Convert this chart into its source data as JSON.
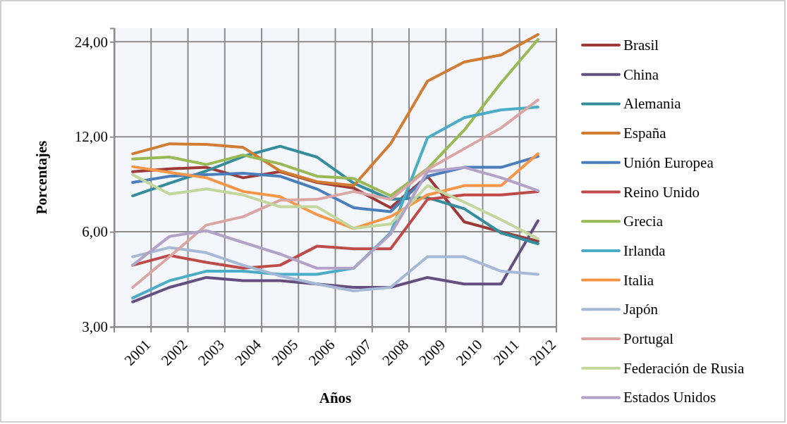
{
  "chart_data": {
    "type": "line",
    "xlabel": "Años",
    "ylabel": "Porcentajes",
    "log": "y",
    "grid": true,
    "legend": "right",
    "line_style": "solid",
    "marker": "none",
    "ylim": [
      3,
      26.5
    ],
    "yticks": [
      {
        "value": 3,
        "label": "3,00"
      },
      {
        "value": 6,
        "label": "6,00"
      },
      {
        "value": 12,
        "label": "12,00"
      },
      {
        "value": 24,
        "label": "24,00"
      }
    ],
    "categories": [
      "2001",
      "2002",
      "2003",
      "2004",
      "2005",
      "2006",
      "2007",
      "2008",
      "2009",
      "2010",
      "2011",
      "2012"
    ],
    "series": [
      {
        "name": "Brasil",
        "color": "#9c3a38",
        "values": [
          9.3,
          9.5,
          9.6,
          8.9,
          9.3,
          8.6,
          8.25,
          7.15,
          9.0,
          6.45,
          6.0,
          5.6
        ]
      },
      {
        "name": "China",
        "color": "#654f80",
        "values": [
          3.6,
          4.0,
          4.3,
          4.2,
          4.2,
          4.1,
          4.0,
          4.0,
          4.3,
          4.1,
          4.1,
          6.5
        ]
      },
      {
        "name": "Alemania",
        "color": "#348c9c",
        "values": [
          7.8,
          8.55,
          9.35,
          10.4,
          11.2,
          10.35,
          8.55,
          7.6,
          7.7,
          7.1,
          5.95,
          5.5
        ]
      },
      {
        "name": "España",
        "color": "#d17c33",
        "values": [
          10.6,
          11.4,
          11.35,
          11.1,
          9.35,
          8.65,
          8.4,
          11.4,
          18.0,
          20.7,
          21.8,
          25.3
        ]
      },
      {
        "name": "Unión Europea",
        "color": "#4a7ebb",
        "values": [
          8.6,
          9.0,
          9.1,
          9.2,
          9.0,
          8.2,
          7.15,
          6.95,
          9.0,
          9.6,
          9.6,
          10.4
        ]
      },
      {
        "name": "Reino Unido",
        "color": "#be4b48",
        "values": [
          4.7,
          5.05,
          4.8,
          4.6,
          4.7,
          5.4,
          5.3,
          5.3,
          7.6,
          7.85,
          7.85,
          8.05
        ]
      },
      {
        "name": "Grecia",
        "color": "#98b954",
        "values": [
          10.2,
          10.35,
          9.8,
          10.5,
          9.85,
          9.0,
          8.85,
          7.8,
          9.5,
          12.6,
          17.8,
          24.4
        ]
      },
      {
        "name": "Irlanda",
        "color": "#4bacc6",
        "values": [
          3.7,
          4.2,
          4.5,
          4.5,
          4.4,
          4.4,
          4.6,
          5.95,
          11.9,
          13.8,
          14.6,
          14.9
        ]
      },
      {
        "name": "Italia",
        "color": "#f79646",
        "values": [
          9.65,
          9.25,
          8.9,
          8.05,
          7.75,
          6.8,
          6.15,
          6.7,
          7.85,
          8.4,
          8.4,
          10.6
        ]
      },
      {
        "name": "Japón",
        "color": "#a5b8d6",
        "values": [
          5.0,
          5.35,
          5.15,
          4.7,
          4.35,
          4.1,
          3.9,
          4.0,
          5.0,
          5.0,
          4.5,
          4.4
        ]
      },
      {
        "name": "Portugal",
        "color": "#d9a6a4",
        "values": [
          4.0,
          5.0,
          6.3,
          6.7,
          7.55,
          7.6,
          8.05,
          7.6,
          9.45,
          11.0,
          12.8,
          15.7
        ]
      },
      {
        "name": "Federación de Rusia",
        "color": "#c3d69b",
        "values": [
          9.1,
          7.9,
          8.2,
          7.85,
          7.2,
          7.2,
          6.15,
          6.35,
          8.4,
          7.45,
          6.55,
          5.7
        ]
      },
      {
        "name": "Estados Unidos",
        "color": "#b3a2c7",
        "values": [
          4.7,
          5.8,
          6.05,
          5.55,
          5.1,
          4.6,
          4.6,
          5.9,
          9.3,
          9.6,
          8.9,
          8.1
        ]
      }
    ]
  }
}
